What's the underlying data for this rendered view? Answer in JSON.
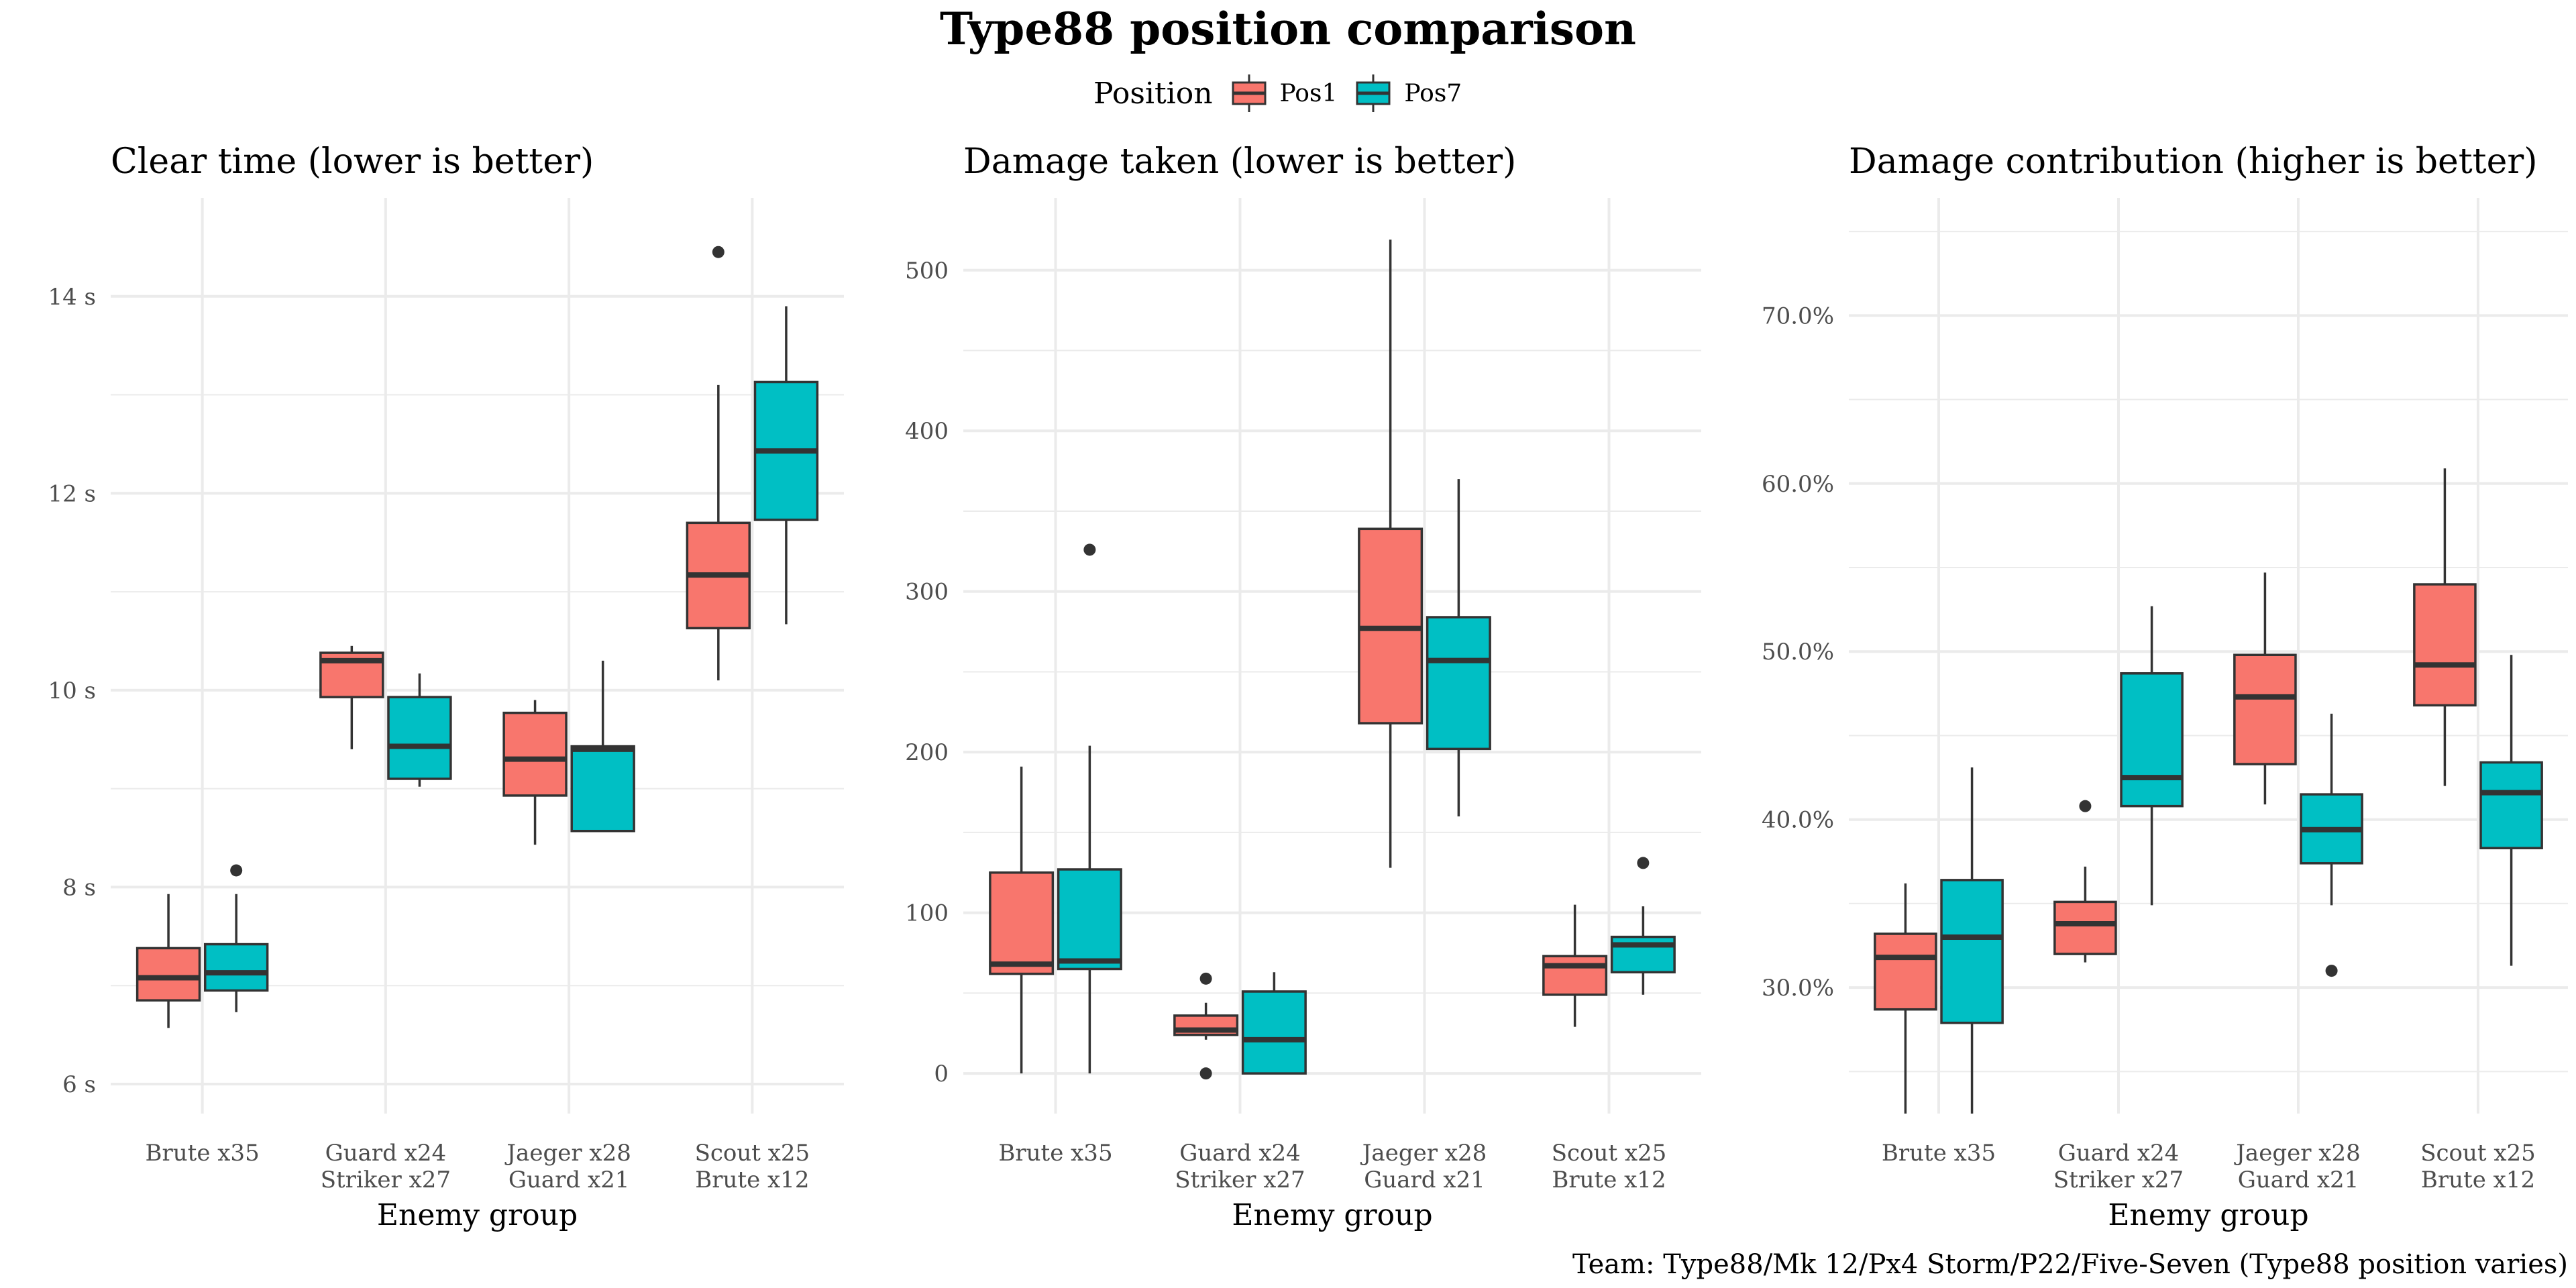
{
  "title": "Type88 position comparison",
  "legend": {
    "title": "Position",
    "items": [
      {
        "label": "Pos1",
        "color": "#F8766D"
      },
      {
        "label": "Pos7",
        "color": "#00BFC4"
      }
    ]
  },
  "caption": "Team: Type88/Mk 12/Px4 Storm/P22/Five-Seven (Type88 position varies)",
  "chart_data": [
    {
      "type": "boxplot",
      "title": "Clear time (lower is better)",
      "xlabel": "Enemy group",
      "ylabel": "",
      "categories": [
        "Brute x35",
        "Guard x24\nStriker x27",
        "Jaeger x28\nGuard x21",
        "Scout x25\nBrute x12"
      ],
      "ylim": [
        5.7,
        15.0
      ],
      "yticks": [
        6,
        8,
        10,
        12,
        14
      ],
      "ytick_labels": [
        "6 s",
        "8 s",
        "10 s",
        "12 s",
        "14 s"
      ],
      "series": [
        {
          "name": "Pos1",
          "color": "#F8766D",
          "boxes": [
            {
              "whisker_low": 6.57,
              "q1": 6.85,
              "median": 7.08,
              "q3": 7.38,
              "whisker_high": 7.93,
              "outliers": []
            },
            {
              "whisker_low": 9.4,
              "q1": 9.93,
              "median": 10.3,
              "q3": 10.38,
              "whisker_high": 10.45,
              "outliers": []
            },
            {
              "whisker_low": 8.43,
              "q1": 8.93,
              "median": 9.3,
              "q3": 9.77,
              "whisker_high": 9.9,
              "outliers": []
            },
            {
              "whisker_low": 10.1,
              "q1": 10.63,
              "median": 11.17,
              "q3": 11.7,
              "whisker_high": 13.1,
              "outliers": [
                14.45
              ]
            }
          ]
        },
        {
          "name": "Pos7",
          "color": "#00BFC4",
          "boxes": [
            {
              "whisker_low": 6.73,
              "q1": 6.95,
              "median": 7.13,
              "q3": 7.42,
              "whisker_high": 7.93,
              "outliers": [
                8.17
              ]
            },
            {
              "whisker_low": 9.02,
              "q1": 9.1,
              "median": 9.43,
              "q3": 9.93,
              "whisker_high": 10.17,
              "outliers": []
            },
            {
              "whisker_low": 8.57,
              "q1": 8.57,
              "median": 9.4,
              "q3": 9.43,
              "whisker_high": 10.3,
              "outliers": []
            },
            {
              "whisker_low": 10.67,
              "q1": 11.73,
              "median": 12.43,
              "q3": 13.13,
              "whisker_high": 13.9,
              "outliers": []
            }
          ]
        }
      ]
    },
    {
      "type": "boxplot",
      "title": "Damage taken (lower is better)",
      "xlabel": "Enemy group",
      "ylabel": "",
      "categories": [
        "Brute x35",
        "Guard x24\nStriker x27",
        "Jaeger x28\nGuard x21",
        "Scout x25\nBrute x12"
      ],
      "ylim": [
        -25,
        545
      ],
      "yticks": [
        0,
        100,
        200,
        300,
        400,
        500
      ],
      "ytick_labels": [
        "0",
        "100",
        "200",
        "300",
        "400",
        "500"
      ],
      "series": [
        {
          "name": "Pos1",
          "color": "#F8766D",
          "boxes": [
            {
              "whisker_low": 0,
              "q1": 62,
              "median": 68,
              "q3": 125,
              "whisker_high": 191,
              "outliers": []
            },
            {
              "whisker_low": 21,
              "q1": 24,
              "median": 27,
              "q3": 36,
              "whisker_high": 44,
              "outliers": [
                59,
                0
              ]
            },
            {
              "whisker_low": 128,
              "q1": 218,
              "median": 277,
              "q3": 339,
              "whisker_high": 519,
              "outliers": []
            },
            {
              "whisker_low": 29,
              "q1": 49,
              "median": 67,
              "q3": 73,
              "whisker_high": 105,
              "outliers": []
            }
          ]
        },
        {
          "name": "Pos7",
          "color": "#00BFC4",
          "boxes": [
            {
              "whisker_low": 0,
              "q1": 65,
              "median": 70,
              "q3": 127,
              "whisker_high": 204,
              "outliers": [
                326
              ]
            },
            {
              "whisker_low": 0,
              "q1": 0,
              "median": 21,
              "q3": 51,
              "whisker_high": 63,
              "outliers": []
            },
            {
              "whisker_low": 160,
              "q1": 202,
              "median": 257,
              "q3": 284,
              "whisker_high": 370,
              "outliers": []
            },
            {
              "whisker_low": 49,
              "q1": 63,
              "median": 80,
              "q3": 85,
              "whisker_high": 104,
              "outliers": [
                131
              ]
            }
          ]
        }
      ]
    },
    {
      "type": "boxplot",
      "title": "Damage contribution (higher is better)",
      "xlabel": "Enemy group",
      "ylabel": "",
      "categories": [
        "Brute x35",
        "Guard x24\nStriker x27",
        "Jaeger x28\nGuard x21",
        "Scout x25\nBrute x12"
      ],
      "ylim": [
        22.5,
        77.0
      ],
      "yticks": [
        30,
        40,
        50,
        60,
        70
      ],
      "ytick_labels": [
        "30.0%",
        "40.0%",
        "50.0%",
        "60.0%",
        "70.0%"
      ],
      "series": [
        {
          "name": "Pos1",
          "color": "#F8766D",
          "boxes": [
            {
              "whisker_low": 22.5,
              "q1": 28.7,
              "median": 31.8,
              "q3": 33.2,
              "whisker_high": 36.2,
              "outliers": []
            },
            {
              "whisker_low": 31.5,
              "q1": 32.0,
              "median": 33.8,
              "q3": 35.1,
              "whisker_high": 37.2,
              "outliers": [
                40.8
              ]
            },
            {
              "whisker_low": 40.9,
              "q1": 43.3,
              "median": 47.3,
              "q3": 49.8,
              "whisker_high": 54.7,
              "outliers": []
            },
            {
              "whisker_low": 42.0,
              "q1": 46.8,
              "median": 49.2,
              "q3": 54.0,
              "whisker_high": 60.9,
              "outliers": []
            }
          ]
        },
        {
          "name": "Pos7",
          "color": "#00BFC4",
          "boxes": [
            {
              "whisker_low": 22.5,
              "q1": 27.9,
              "median": 33.0,
              "q3": 36.4,
              "whisker_high": 43.1,
              "outliers": []
            },
            {
              "whisker_low": 34.9,
              "q1": 40.8,
              "median": 42.5,
              "q3": 48.7,
              "whisker_high": 52.7,
              "outliers": []
            },
            {
              "whisker_low": 34.9,
              "q1": 37.4,
              "median": 39.4,
              "q3": 41.5,
              "whisker_high": 46.3,
              "outliers": [
                31.0
              ]
            },
            {
              "whisker_low": 31.3,
              "q1": 38.3,
              "median": 41.6,
              "q3": 43.4,
              "whisker_high": 49.8,
              "outliers": []
            }
          ]
        }
      ]
    }
  ]
}
